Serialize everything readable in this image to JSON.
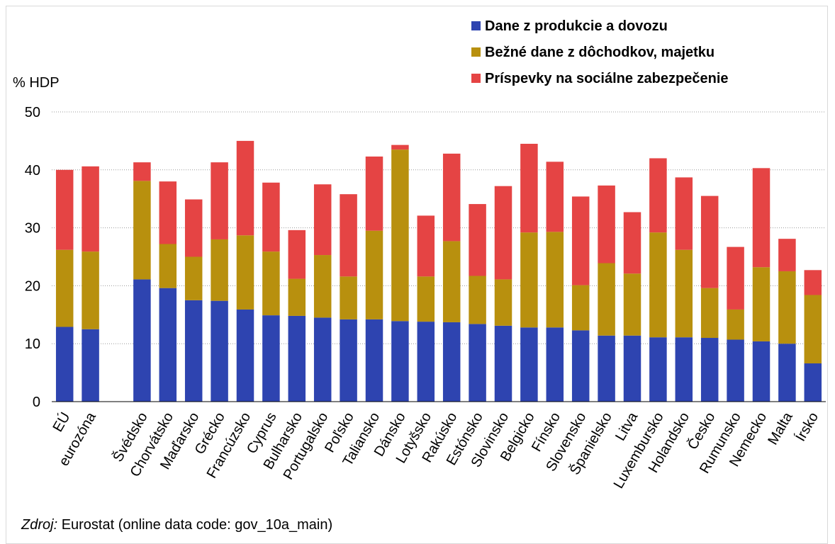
{
  "chart_data": {
    "type": "bar",
    "stacked": true,
    "ylabel": "% HDP",
    "ylim": [
      0,
      50
    ],
    "yticks": [
      0,
      10,
      20,
      30,
      40,
      50
    ],
    "grid": true,
    "legend_position": "top-right",
    "categories": [
      "EÚ",
      "eurozóna",
      "",
      "Švédsko",
      "Chorvátsko",
      "Maďarsko",
      "Grécko",
      "Francúzsko",
      "Cyprus",
      "Bulharsko",
      "Portugalsko",
      "Poľsko",
      "Taliansko",
      "Dánsko",
      "Lotyšsko",
      "Rakúsko",
      "Estónsko",
      "Slovinsko",
      "Belgicko",
      "Fínsko",
      "Slovensko",
      "Španielsko",
      "Litva",
      "Luxembursko",
      "Holandsko",
      "Česko",
      "Rumunsko",
      "Nemecko",
      "Malta",
      "Írsko"
    ],
    "series": [
      {
        "name": "Dane z produkcie a dovozu",
        "color": "#2e44b0",
        "values": [
          12.9,
          12.5,
          null,
          21.1,
          19.6,
          17.5,
          17.4,
          15.9,
          14.9,
          14.8,
          14.5,
          14.2,
          14.2,
          13.9,
          13.8,
          13.7,
          13.4,
          13.1,
          12.8,
          12.8,
          12.3,
          11.4,
          11.4,
          11.1,
          11.1,
          11.0,
          10.7,
          10.4,
          10.0,
          6.6
        ]
      },
      {
        "name": "Bežné dane z dôchodkov, majetku",
        "color": "#b8900e",
        "values": [
          13.3,
          13.4,
          null,
          17.0,
          7.6,
          7.5,
          10.6,
          12.8,
          11.0,
          6.4,
          10.8,
          7.4,
          15.3,
          29.6,
          7.8,
          14.0,
          8.3,
          8.0,
          16.4,
          16.5,
          7.8,
          12.5,
          10.7,
          18.1,
          15.1,
          8.6,
          5.2,
          12.8,
          12.5,
          11.8
        ]
      },
      {
        "name": "Príspevky na sociálne zabezpečenie",
        "color": "#e54444",
        "values": [
          13.8,
          14.7,
          null,
          3.2,
          10.8,
          9.9,
          13.3,
          16.3,
          11.9,
          8.4,
          12.2,
          14.2,
          12.8,
          0.8,
          10.5,
          15.1,
          12.4,
          16.1,
          15.3,
          12.1,
          15.3,
          13.4,
          10.6,
          12.8,
          12.5,
          15.9,
          10.8,
          17.1,
          5.6,
          4.3
        ]
      }
    ]
  },
  "source": {
    "label": "Zdroj:",
    "text": "Eurostat (online data code: gov_10a_main)"
  }
}
